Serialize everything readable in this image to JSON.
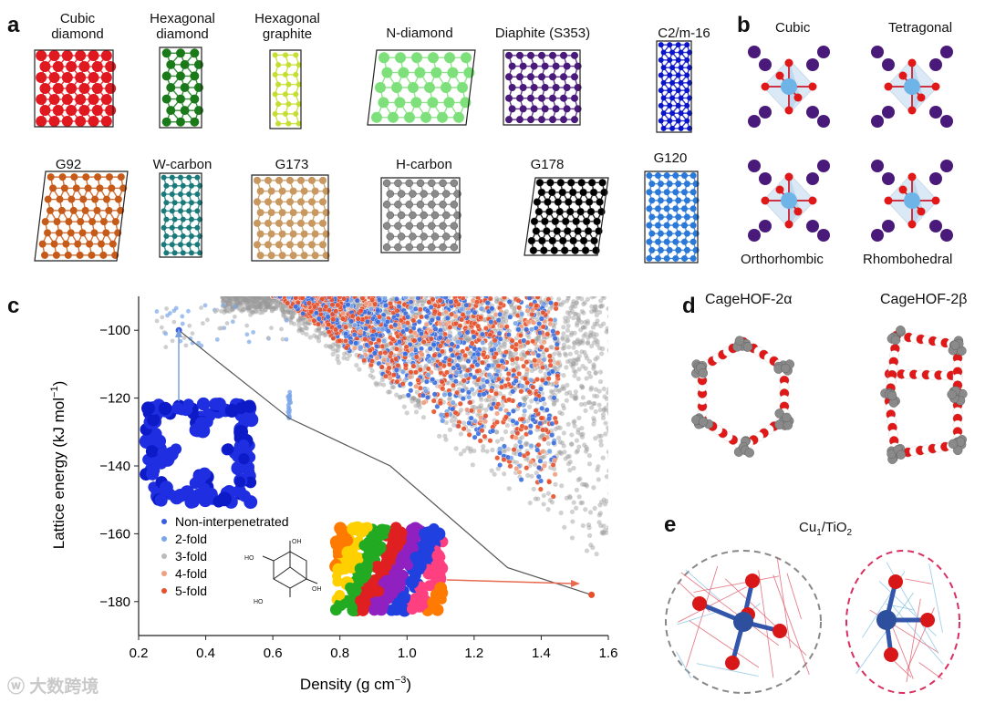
{
  "panels": {
    "a": {
      "letter": "a",
      "structures": [
        {
          "name": "Cubic\ndiamond",
          "color": "#e01820"
        },
        {
          "name": "Hexagonal\ndiamond",
          "color": "#1a7a1a"
        },
        {
          "name": "Hexagonal\ngraphite",
          "color": "#c6de30"
        },
        {
          "name": "N-diamond",
          "color": "#7ee07a"
        },
        {
          "name": "Diaphite (S353)",
          "color": "#4a1a7a"
        },
        {
          "name": "C2/m-16",
          "color": "#0a14c8"
        },
        {
          "name": "G92",
          "color": "#c65a18"
        },
        {
          "name": "W-carbon",
          "color": "#1a7a7a"
        },
        {
          "name": "G173",
          "color": "#c89860"
        },
        {
          "name": "H-carbon",
          "color": "#8a8a8a"
        },
        {
          "name": "G178",
          "color": "#000000"
        },
        {
          "name": "G120",
          "color": "#2a78d8"
        }
      ]
    },
    "b": {
      "letter": "b",
      "phases": [
        "Cubic",
        "Tetragonal",
        "Orthorhombic",
        "Rhombohedral"
      ]
    },
    "d": {
      "letter": "d",
      "titles": [
        "CageHOF-2α",
        "CageHOF-2β"
      ]
    },
    "e": {
      "letter": "e",
      "title": "Cu1/TiO2",
      "title_main": "Cu",
      "title_sub1": "1",
      "title_mid": "/TiO",
      "title_sub2": "2"
    }
  },
  "chart_data": {
    "type": "scatter",
    "panel_letter": "c",
    "xlabel_main": "Density (g cm",
    "xlabel_sup": "−3",
    "xlabel_end": ")",
    "ylabel_main": "Lattice energy (kJ mol",
    "ylabel_sup": "−1",
    "ylabel_end": ")",
    "xlim": [
      0.2,
      1.6
    ],
    "ylim": [
      -190,
      -90
    ],
    "x_ticks": [
      "0.2",
      "0.4",
      "0.6",
      "0.8",
      "1.0",
      "1.2",
      "1.4",
      "1.6"
    ],
    "y_ticks": [
      "−100",
      "−120",
      "−140",
      "−160",
      "−180"
    ],
    "y_tick_values": [
      -100,
      -120,
      -140,
      -160,
      -180
    ],
    "legend": [
      {
        "label": "Non-interpenetrated",
        "color": "#3a5ee0"
      },
      {
        "label": "2-fold",
        "color": "#7aa6e8"
      },
      {
        "label": "3-fold",
        "color": "#bbbbbb"
      },
      {
        "label": "4-fold",
        "color": "#f0a080"
      },
      {
        "label": "5-fold",
        "color": "#e8502a"
      }
    ],
    "energy_landscape_line": {
      "x": [
        0.32,
        0.42,
        0.65,
        0.95,
        1.3,
        1.55
      ],
      "y": [
        -100,
        -108,
        -126,
        -140,
        -170,
        -178
      ]
    },
    "highlight_points": [
      {
        "x": 0.32,
        "y": -100,
        "series": "Non-interpenetrated"
      },
      {
        "x": 1.55,
        "y": -178,
        "series": "5-fold"
      }
    ]
  },
  "watermark": "大数跨境"
}
